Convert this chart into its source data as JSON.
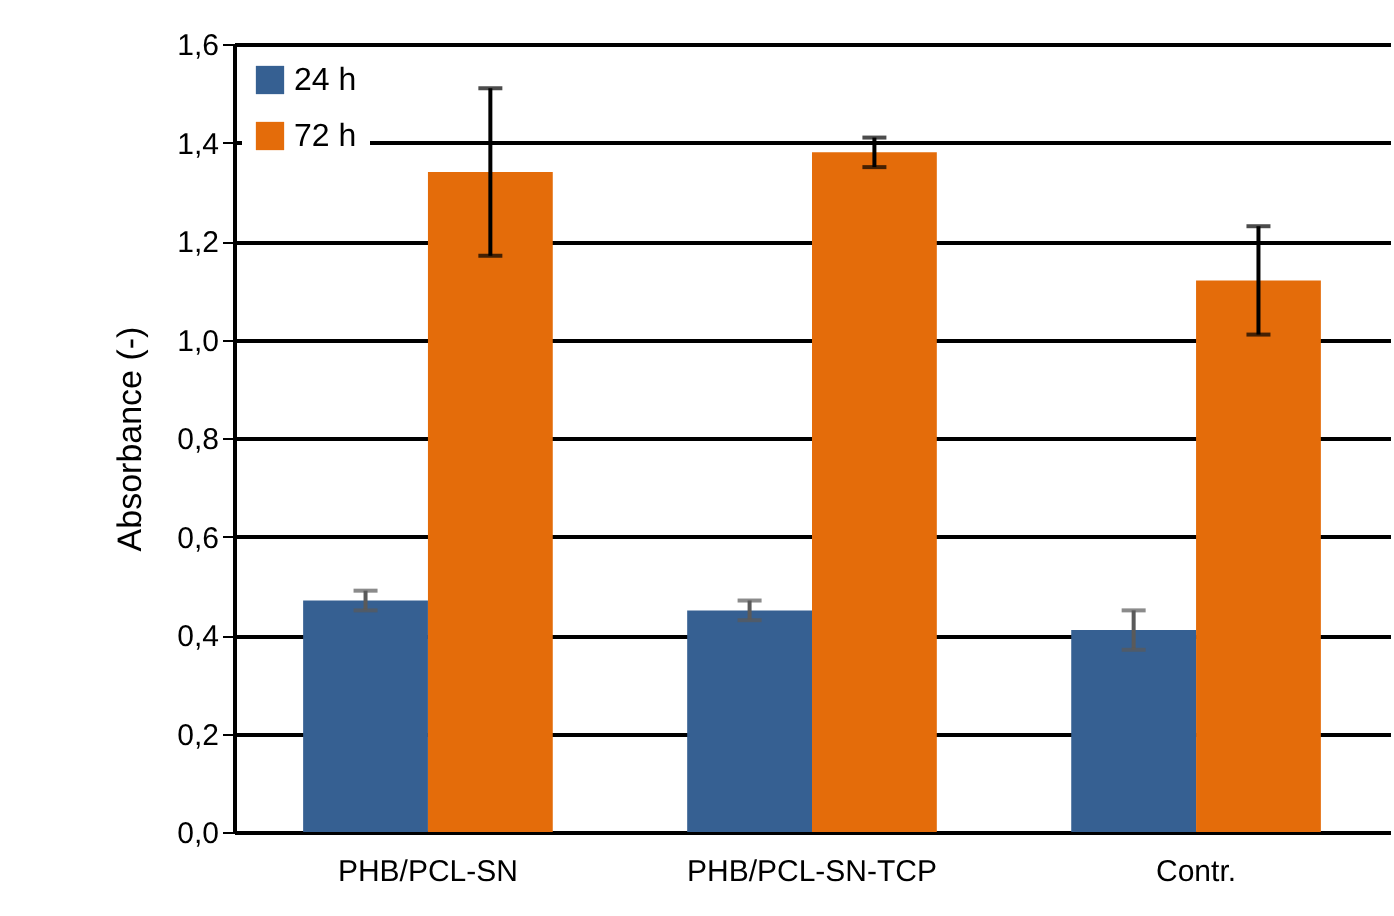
{
  "chart_data": {
    "type": "bar",
    "ylabel": "Absorbance (-)",
    "categories": [
      "PHB/PCL-SN",
      "PHB/PCL-SN-TCP",
      "Contr."
    ],
    "series": [
      {
        "name": "24 h",
        "color": "#366092",
        "values": [
          0.47,
          0.45,
          0.41
        ],
        "errors": [
          0.02,
          0.02,
          0.04
        ]
      },
      {
        "name": "72 h",
        "color": "#e46c0a",
        "values": [
          1.34,
          1.38,
          1.12
        ],
        "errors": [
          0.17,
          0.03,
          0.11
        ]
      }
    ],
    "ylim": [
      0,
      1.6
    ],
    "yticks": [
      {
        "value": 0,
        "label": "0,0"
      },
      {
        "value": 0.2,
        "label": "0,2"
      },
      {
        "value": 0.4,
        "label": "0,4"
      },
      {
        "value": 0.6,
        "label": "0,6"
      },
      {
        "value": 0.8,
        "label": "0,8"
      },
      {
        "value": 1,
        "label": "1,0"
      },
      {
        "value": 1.2,
        "label": "1,2"
      },
      {
        "value": 1.4,
        "label": "1,4"
      },
      {
        "value": 1.6,
        "label": "1,6"
      }
    ],
    "grid": "y",
    "legend": "top left"
  }
}
